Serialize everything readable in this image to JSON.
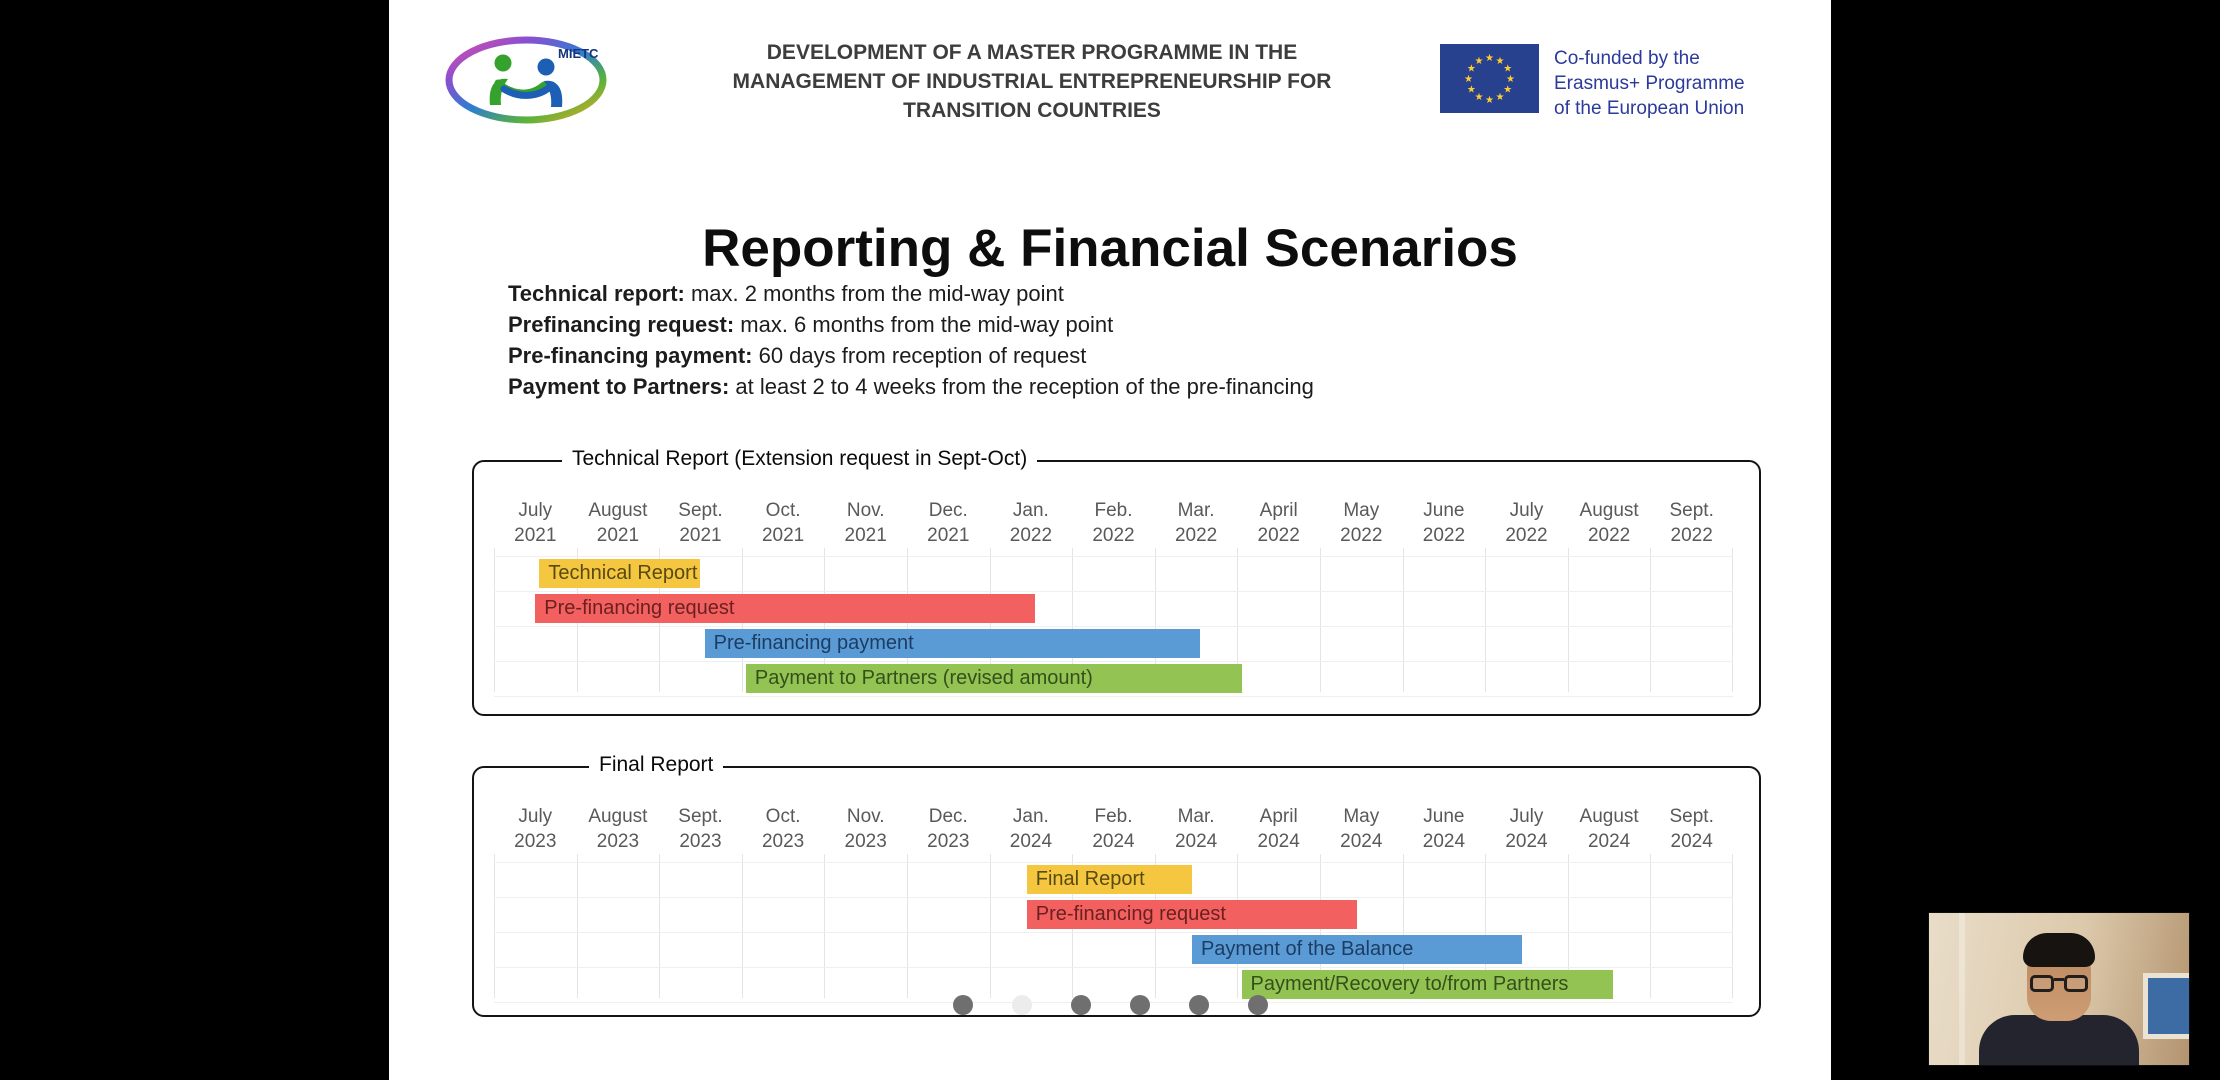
{
  "header": {
    "logo_text": "MIETC",
    "title_lines": [
      "DEVELOPMENT OF A MASTER PROGRAMME IN THE",
      "MANAGEMENT OF INDUSTRIAL ENTREPRENEURSHIP FOR",
      "TRANSITION COUNTRIES"
    ],
    "eu_badge_lines": [
      "Co-funded by the",
      "Erasmus+ Programme",
      "of the European Union"
    ]
  },
  "slide": {
    "title": "Reporting & Financial Scenarios",
    "bullets": [
      {
        "label": "Technical report:",
        "text": "max. 2 months from the mid-way point"
      },
      {
        "label": "Prefinancing request:",
        "text": "max. 6 months from the mid-way point"
      },
      {
        "label": "Pre-financing payment:",
        "text": "60 days from reception of request"
      },
      {
        "label": "Payment to Partners:",
        "text": "at least 2 to 4 weeks from the reception of the pre-financing"
      }
    ]
  },
  "chart_data": [
    {
      "type": "bar",
      "variant": "gantt-timeline",
      "title": "Technical Report (Extension request in Sept-Oct)",
      "x_axis": "months, July 2021 - Sept. 2022",
      "grid": true,
      "months": [
        {
          "month": "July",
          "year": "2021"
        },
        {
          "month": "August",
          "year": "2021"
        },
        {
          "month": "Sept.",
          "year": "2021"
        },
        {
          "month": "Oct.",
          "year": "2021"
        },
        {
          "month": "Nov.",
          "year": "2021"
        },
        {
          "month": "Dec.",
          "year": "2021"
        },
        {
          "month": "Jan.",
          "year": "2022"
        },
        {
          "month": "Feb.",
          "year": "2022"
        },
        {
          "month": "Mar.",
          "year": "2022"
        },
        {
          "month": "April",
          "year": "2022"
        },
        {
          "month": "May",
          "year": "2022"
        },
        {
          "month": "June",
          "year": "2022"
        },
        {
          "month": "July",
          "year": "2022"
        },
        {
          "month": "August",
          "year": "2022"
        },
        {
          "month": "Sept.",
          "year": "2022"
        }
      ],
      "bars": [
        {
          "id": "technical-report",
          "label": "Technical Report",
          "start_month": 0.55,
          "end_month": 2.5,
          "color": "#F5C63F",
          "text_color": "#574a12"
        },
        {
          "id": "pre-financing-request",
          "label": "Pre-financing request",
          "start_month": 0.5,
          "end_month": 6.55,
          "color": "#F26060",
          "text_color": "#6b2020"
        },
        {
          "id": "pre-financing-payment",
          "label": "Pre-financing payment",
          "start_month": 2.55,
          "end_month": 8.55,
          "color": "#5B9BD5",
          "text_color": "#1c3d63"
        },
        {
          "id": "payment-to-partners",
          "label": "Payment to Partners (revised amount)",
          "start_month": 3.05,
          "end_month": 9.05,
          "color": "#93C353",
          "text_color": "#33501a"
        }
      ]
    },
    {
      "type": "bar",
      "variant": "gantt-timeline",
      "title": "Final Report",
      "x_axis": "months, July 2023 - Sept. 2024",
      "grid": true,
      "months": [
        {
          "month": "July",
          "year": "2023"
        },
        {
          "month": "August",
          "year": "2023"
        },
        {
          "month": "Sept.",
          "year": "2023"
        },
        {
          "month": "Oct.",
          "year": "2023"
        },
        {
          "month": "Nov.",
          "year": "2023"
        },
        {
          "month": "Dec.",
          "year": "2023"
        },
        {
          "month": "Jan.",
          "year": "2024"
        },
        {
          "month": "Feb.",
          "year": "2024"
        },
        {
          "month": "Mar.",
          "year": "2024"
        },
        {
          "month": "April",
          "year": "2024"
        },
        {
          "month": "May",
          "year": "2024"
        },
        {
          "month": "June",
          "year": "2024"
        },
        {
          "month": "July",
          "year": "2024"
        },
        {
          "month": "August",
          "year": "2024"
        },
        {
          "month": "Sept.",
          "year": "2024"
        }
      ],
      "bars": [
        {
          "id": "final-report",
          "label": "Final Report",
          "start_month": 6.45,
          "end_month": 8.45,
          "color": "#F5C63F",
          "text_color": "#574a12"
        },
        {
          "id": "pre-financing-request",
          "label": "Pre-financing request",
          "start_month": 6.45,
          "end_month": 10.45,
          "color": "#F26060",
          "text_color": "#6b2020"
        },
        {
          "id": "payment-of-the-balance",
          "label": "Payment of the Balance",
          "start_month": 8.45,
          "end_month": 12.45,
          "color": "#5B9BD5",
          "text_color": "#1c3d63"
        },
        {
          "id": "payment-recovery-partners",
          "label": "Payment/Recovery to/from Partners",
          "start_month": 9.05,
          "end_month": 13.55,
          "color": "#93C353",
          "text_color": "#33501a"
        }
      ]
    }
  ],
  "pager": {
    "dot_count": 6,
    "active_index": 1
  },
  "colors": {
    "eu_flag_blue": "#27418f",
    "eu_star_yellow": "#ffcc33",
    "eu_text_blue": "#2b3a9b",
    "bar_yellow": "#F5C63F",
    "bar_red": "#F26060",
    "bar_blue": "#5B9BD5",
    "bar_green": "#93C353"
  }
}
